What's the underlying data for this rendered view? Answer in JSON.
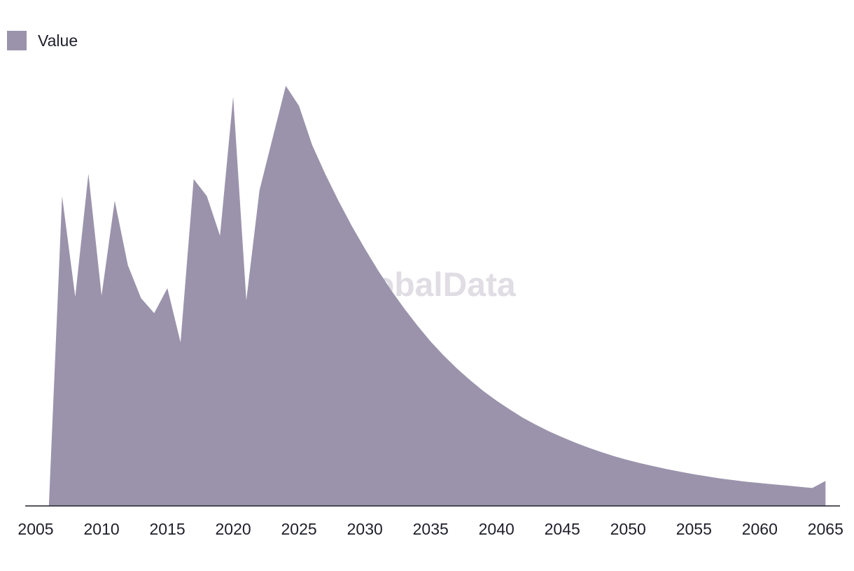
{
  "legend": {
    "label": "Value"
  },
  "watermark": "GlobalData",
  "colors": {
    "area": "#9b93ab",
    "axis": "#1f1f2b"
  },
  "chart_data": {
    "type": "area",
    "title": "",
    "xlabel": "",
    "ylabel": "",
    "xlim": [
      2004.2,
      2066.1
    ],
    "ylim": [
      0,
      100
    ],
    "grid": false,
    "legend_position": "top-left",
    "x_ticks": [
      2005,
      2010,
      2015,
      2020,
      2025,
      2030,
      2035,
      2040,
      2045,
      2050,
      2055,
      2060,
      2065
    ],
    "series": [
      {
        "name": "Value",
        "x": [
          2006,
          2007,
          2008,
          2009,
          2010,
          2011,
          2012,
          2013,
          2014,
          2015,
          2016,
          2017,
          2018,
          2019,
          2020,
          2021,
          2022,
          2023,
          2024,
          2025,
          2026,
          2027,
          2028,
          2029,
          2030,
          2031,
          2032,
          2033,
          2034,
          2035,
          2036,
          2037,
          2038,
          2039,
          2040,
          2041,
          2042,
          2043,
          2044,
          2045,
          2046,
          2047,
          2048,
          2049,
          2050,
          2051,
          2052,
          2053,
          2054,
          2055,
          2056,
          2057,
          2058,
          2059,
          2060,
          2061,
          2062,
          2063,
          2064,
          2065
        ],
        "values": [
          0,
          74.4,
          50.2,
          79.8,
          50.5,
          73.3,
          57.8,
          49.9,
          46.3,
          52.3,
          39.3,
          78.5,
          74.4,
          64.9,
          98.3,
          49.4,
          75.8,
          88.4,
          100.9,
          96.1,
          86.7,
          79.7,
          73.3,
          67.3,
          61.8,
          56.6,
          51.8,
          47.4,
          43.3,
          39.5,
          36.1,
          33.0,
          30.2,
          27.6,
          25.3,
          23.2,
          21.2,
          19.5,
          17.9,
          16.5,
          15.2,
          14.0,
          12.9,
          11.9,
          11.0,
          10.2,
          9.5,
          8.8,
          8.2,
          7.6,
          7.1,
          6.6,
          6.2,
          5.8,
          5.5,
          5.2,
          4.9,
          4.6,
          4.3,
          6.0
        ]
      }
    ]
  }
}
